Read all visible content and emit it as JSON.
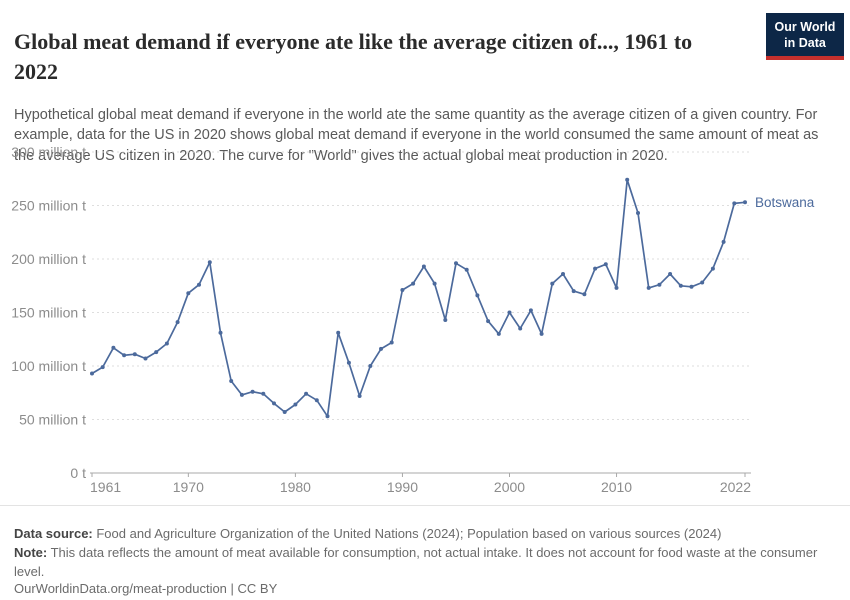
{
  "header": {
    "title": "Global meat demand if everyone ate like the average citizen of..., 1961 to 2022",
    "subtitle": "Hypothetical global meat demand if everyone in the world ate the same quantity as the average citizen of a given country. For example, data for the US in 2020 shows global meat demand if everyone in the world consumed the same amount of meat as the average US citizen in 2020. The curve for \"World\" gives the actual global meat production in 2020.",
    "logo": {
      "line1": "Our World",
      "line2": "in Data",
      "bg_color": "#0d2747",
      "accent_color": "#c5302d"
    }
  },
  "chart_data": {
    "type": "line",
    "title": "Global meat demand if everyone ate like the average citizen of..., 1961 to 2022",
    "unit": "million t",
    "grid": "dashed horizontal",
    "legend_position": "end-of-line label",
    "ylim": [
      0,
      300
    ],
    "yticks": [
      {
        "value": 0,
        "label": "0 t"
      },
      {
        "value": 50,
        "label": "50 million t"
      },
      {
        "value": 100,
        "label": "100 million t"
      },
      {
        "value": 150,
        "label": "150 million t"
      },
      {
        "value": 200,
        "label": "200 million t"
      },
      {
        "value": 250,
        "label": "250 million t"
      },
      {
        "value": 300,
        "label": "300 million t"
      }
    ],
    "xticks": [
      1961,
      1970,
      1980,
      1990,
      2000,
      2010,
      2022
    ],
    "end_label": "Botswana",
    "series": [
      {
        "name": "Botswana",
        "color": "#4c6a9c",
        "x": [
          1961,
          1962,
          1963,
          1964,
          1965,
          1966,
          1967,
          1968,
          1969,
          1970,
          1971,
          1972,
          1973,
          1974,
          1975,
          1976,
          1977,
          1978,
          1979,
          1980,
          1981,
          1982,
          1983,
          1984,
          1985,
          1986,
          1987,
          1988,
          1989,
          1990,
          1991,
          1992,
          1993,
          1994,
          1995,
          1996,
          1997,
          1998,
          1999,
          2000,
          2001,
          2002,
          2003,
          2004,
          2005,
          2006,
          2007,
          2008,
          2009,
          2010,
          2011,
          2012,
          2013,
          2014,
          2015,
          2016,
          2017,
          2018,
          2019,
          2020,
          2021,
          2022
        ],
        "values": [
          93,
          99,
          117,
          110,
          111,
          107,
          113,
          121,
          141,
          168,
          176,
          197,
          131,
          86,
          73,
          76,
          74,
          65,
          57,
          64,
          74,
          68,
          53,
          131,
          103,
          72,
          100,
          116,
          122,
          171,
          177,
          193,
          177,
          143,
          196,
          190,
          166,
          142,
          130,
          150,
          135,
          152,
          130,
          177,
          186,
          170,
          167,
          191,
          195,
          173,
          274,
          243,
          173,
          176,
          186,
          175,
          174,
          178,
          191,
          216,
          252,
          253
        ]
      }
    ]
  },
  "footer": {
    "data_source_label": "Data source:",
    "data_source_text": " Food and Agriculture Organization of the United Nations (2024); Population based on various sources (2024)",
    "note_label": "Note:",
    "note_text": " This data reflects the amount of meat available for consumption, not actual intake. It does not account for food waste at the consumer level.",
    "citation": "OurWorldinData.org/meat-production | CC BY"
  }
}
